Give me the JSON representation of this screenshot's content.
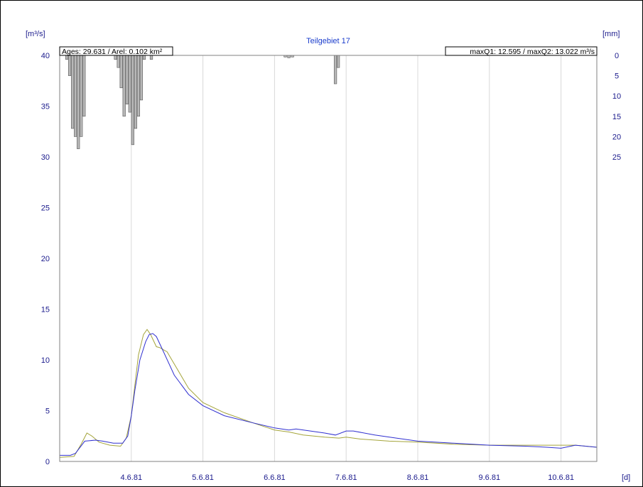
{
  "chart_data": {
    "type": "line",
    "title": "Teilgebiet 17",
    "ylabel": "[m³/s]",
    "y2label": "[mm]",
    "xlabel": "[d]",
    "info_left": "Ages: 29.631 / Arel: 0.102 km²",
    "info_right": "maxQ1: 12.595 / maxQ2: 13.022 m³/s",
    "ylim": [
      0,
      40
    ],
    "y_ticks": [
      "0",
      "5",
      "10",
      "15",
      "20",
      "25",
      "30",
      "35",
      "40"
    ],
    "y2lim": [
      0,
      100
    ],
    "y2_ticks": [
      "0",
      "5",
      "10",
      "15",
      "20",
      "25"
    ],
    "xlim": [
      0,
      7.5
    ],
    "x_ticks": [
      {
        "x": 1,
        "label": "4.6.81"
      },
      {
        "x": 2,
        "label": "5.6.81"
      },
      {
        "x": 3,
        "label": "6.6.81"
      },
      {
        "x": 4,
        "label": "7.6.81"
      },
      {
        "x": 5,
        "label": "8.6.81"
      },
      {
        "x": 6,
        "label": "9.6.81"
      },
      {
        "x": 7,
        "label": "10.6.81"
      }
    ],
    "grid": "vertical",
    "colors": {
      "series1": "#3030d0",
      "series2": "#a4a43a",
      "bars": "#b8b8b8",
      "axis_text": "#1a1a8c"
    },
    "series": [
      {
        "x": [
          0,
          0.15,
          0.22,
          0.35,
          0.5,
          0.6,
          0.75,
          0.88,
          0.95,
          1.0,
          1.05,
          1.12,
          1.2,
          1.25,
          1.3,
          1.35,
          1.45,
          1.6,
          1.8,
          2.0,
          2.3,
          2.7,
          3.0,
          3.2,
          3.3,
          3.5,
          3.7,
          3.85,
          4.0,
          4.1,
          4.4,
          4.7,
          5.0,
          5.5,
          6.0,
          6.5,
          6.8,
          7.0,
          7.2,
          7.5
        ],
        "values": [
          0.6,
          0.6,
          0.8,
          2.0,
          2.1,
          2.0,
          1.8,
          1.8,
          2.5,
          4.5,
          7.0,
          10.0,
          11.8,
          12.5,
          12.6,
          12.3,
          10.8,
          8.5,
          6.6,
          5.5,
          4.5,
          3.8,
          3.3,
          3.1,
          3.2,
          3.0,
          2.8,
          2.6,
          3.0,
          3.0,
          2.6,
          2.3,
          2.0,
          1.8,
          1.6,
          1.5,
          1.4,
          1.3,
          1.6,
          1.4
        ]
      },
      {
        "x": [
          0,
          0.2,
          0.3,
          0.38,
          0.45,
          0.55,
          0.7,
          0.85,
          0.93,
          1.0,
          1.05,
          1.1,
          1.17,
          1.22,
          1.27,
          1.35,
          1.4,
          1.5,
          1.65,
          1.8,
          2.0,
          2.3,
          2.7,
          3.0,
          3.2,
          3.4,
          3.7,
          3.9,
          4.0,
          4.2,
          4.6,
          5.0,
          5.5,
          6.0,
          6.5,
          7.0,
          7.2,
          7.5
        ],
        "values": [
          0.4,
          0.5,
          1.7,
          2.8,
          2.5,
          1.9,
          1.6,
          1.5,
          2.3,
          4.5,
          7.5,
          10.5,
          12.5,
          13.0,
          12.5,
          11.3,
          11.2,
          10.8,
          9.0,
          7.2,
          5.8,
          4.8,
          3.8,
          3.1,
          2.9,
          2.6,
          2.4,
          2.3,
          2.4,
          2.2,
          2.0,
          1.9,
          1.7,
          1.6,
          1.6,
          1.6,
          1.6,
          1.4
        ]
      }
    ],
    "bars": {
      "x": [
        0.1,
        0.14,
        0.18,
        0.22,
        0.26,
        0.3,
        0.34,
        0.78,
        0.82,
        0.86,
        0.9,
        0.94,
        0.98,
        1.02,
        1.06,
        1.1,
        1.14,
        1.18,
        1.28,
        3.15,
        3.2,
        3.25,
        3.85,
        3.89
      ],
      "values": [
        1,
        5,
        18,
        20,
        23,
        20,
        15,
        1,
        3,
        8,
        15,
        12,
        14,
        22,
        18,
        15,
        11,
        1,
        1,
        0.4,
        0.6,
        0.4,
        7,
        3
      ]
    }
  }
}
